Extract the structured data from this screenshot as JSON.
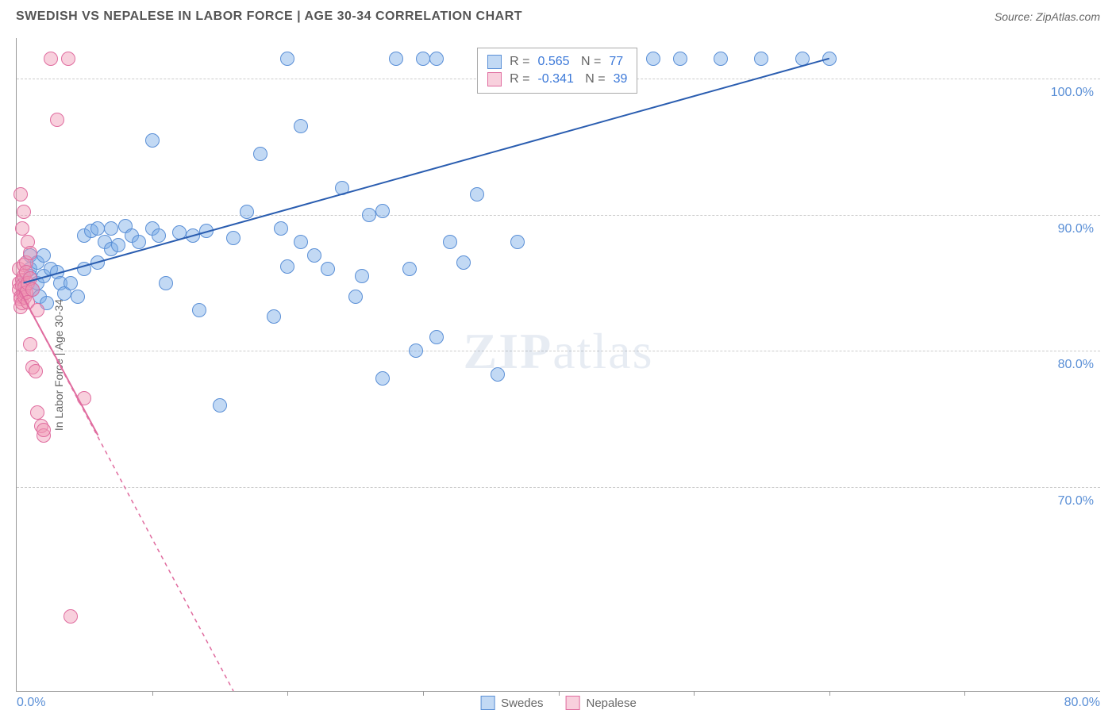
{
  "header": {
    "title": "SWEDISH VS NEPALESE IN LABOR FORCE | AGE 30-34 CORRELATION CHART",
    "source": "Source: ZipAtlas.com"
  },
  "chart": {
    "type": "scatter",
    "y_axis_label": "In Labor Force | Age 30-34",
    "xlim": [
      0,
      80
    ],
    "ylim": [
      55,
      103
    ],
    "x_origin_label": "0.0%",
    "x_end_label": "80.0%",
    "y_ticks": [
      {
        "value": 70,
        "label": "70.0%"
      },
      {
        "value": 80,
        "label": "80.0%"
      },
      {
        "value": 90,
        "label": "90.0%"
      },
      {
        "value": 100,
        "label": "100.0%"
      }
    ],
    "x_tick_marks": [
      10,
      20,
      30,
      40,
      50,
      60,
      70
    ],
    "background_color": "#ffffff",
    "grid_color": "#cccccc",
    "watermark": {
      "zip": "ZIP",
      "atlas": "atlas"
    },
    "series": [
      {
        "name": "Swedes",
        "color_fill": "rgba(120,170,230,0.45)",
        "color_stroke": "#5a8fd6",
        "marker_size": 18,
        "trend": {
          "x1": 0.5,
          "y1": 85,
          "x2": 60,
          "y2": 101.5,
          "color": "#2a5db0",
          "width": 2,
          "dash": "none"
        },
        "R": "0.565",
        "N": "77",
        "points": [
          [
            0.5,
            85
          ],
          [
            1,
            86
          ],
          [
            1,
            87
          ],
          [
            1,
            85.5
          ],
          [
            1.2,
            84.5
          ],
          [
            1.5,
            86.5
          ],
          [
            1.5,
            85
          ],
          [
            1.7,
            84
          ],
          [
            2,
            87
          ],
          [
            2,
            85.5
          ],
          [
            2.2,
            83.5
          ],
          [
            2.5,
            86
          ],
          [
            3,
            85.8
          ],
          [
            3.2,
            85
          ],
          [
            3.5,
            84.2
          ],
          [
            4,
            85
          ],
          [
            4.5,
            84
          ],
          [
            5,
            88.5
          ],
          [
            5,
            86
          ],
          [
            5.5,
            88.8
          ],
          [
            6,
            89
          ],
          [
            6,
            86.5
          ],
          [
            6.5,
            88
          ],
          [
            7,
            89
          ],
          [
            7,
            87.5
          ],
          [
            7.5,
            87.8
          ],
          [
            8,
            89.2
          ],
          [
            8.5,
            88.5
          ],
          [
            9,
            88
          ],
          [
            10,
            89
          ],
          [
            10,
            95.5
          ],
          [
            10.5,
            88.5
          ],
          [
            11,
            85
          ],
          [
            12,
            88.7
          ],
          [
            13,
            88.5
          ],
          [
            13.5,
            83
          ],
          [
            14,
            88.8
          ],
          [
            15,
            76
          ],
          [
            16,
            88.3
          ],
          [
            17,
            90.2
          ],
          [
            18,
            94.5
          ],
          [
            19,
            82.5
          ],
          [
            19.5,
            89
          ],
          [
            20,
            86.2
          ],
          [
            20,
            101.5
          ],
          [
            21,
            88
          ],
          [
            21,
            96.5
          ],
          [
            22,
            87
          ],
          [
            23,
            86
          ],
          [
            24,
            92
          ],
          [
            25,
            84
          ],
          [
            25.5,
            85.5
          ],
          [
            26,
            90
          ],
          [
            27,
            90.3
          ],
          [
            27,
            78
          ],
          [
            28,
            101.5
          ],
          [
            29,
            86
          ],
          [
            29.5,
            80
          ],
          [
            31,
            81
          ],
          [
            30,
            101.5
          ],
          [
            31,
            101.5
          ],
          [
            32,
            88
          ],
          [
            33,
            86.5
          ],
          [
            34,
            91.5
          ],
          [
            35,
            101.5
          ],
          [
            35.5,
            78.3
          ],
          [
            37,
            88
          ],
          [
            40,
            101.5
          ],
          [
            41,
            101.5
          ],
          [
            42,
            101.5
          ],
          [
            44,
            101.5
          ],
          [
            47,
            101.5
          ],
          [
            49,
            101.5
          ],
          [
            52,
            101.5
          ],
          [
            55,
            101.5
          ],
          [
            58,
            101.5
          ],
          [
            60,
            101.5
          ]
        ]
      },
      {
        "name": "Nepalese",
        "color_fill": "rgba(240,150,180,0.45)",
        "color_stroke": "#e06c9f",
        "marker_size": 18,
        "trend": {
          "x1": 0.2,
          "y1": 84.5,
          "x2": 16,
          "y2": 55,
          "color": "#e06c9f",
          "width": 1.5,
          "dash": "5,5"
        },
        "trend_solid": {
          "x1": 0.2,
          "y1": 84.5,
          "x2": 6,
          "y2": 73.8,
          "color": "#e06c9f",
          "width": 2,
          "dash": "none"
        },
        "R": "-0.341",
        "N": "39",
        "points": [
          [
            0.2,
            86
          ],
          [
            0.2,
            85
          ],
          [
            0.2,
            84.5
          ],
          [
            0.3,
            84
          ],
          [
            0.3,
            83.8
          ],
          [
            0.3,
            83.2
          ],
          [
            0.3,
            91.5
          ],
          [
            0.4,
            85.2
          ],
          [
            0.4,
            84.8
          ],
          [
            0.4,
            83.5
          ],
          [
            0.4,
            89
          ],
          [
            0.5,
            86.3
          ],
          [
            0.5,
            85.5
          ],
          [
            0.5,
            84.2
          ],
          [
            0.5,
            90.2
          ],
          [
            0.6,
            84.7
          ],
          [
            0.6,
            83.9
          ],
          [
            0.7,
            86.5
          ],
          [
            0.7,
            85.8
          ],
          [
            0.7,
            84.3
          ],
          [
            0.8,
            85
          ],
          [
            0.8,
            83.6
          ],
          [
            0.8,
            88
          ],
          [
            1,
            87.2
          ],
          [
            1,
            85.3
          ],
          [
            1,
            80.5
          ],
          [
            1.2,
            78.8
          ],
          [
            1.2,
            84.5
          ],
          [
            1.4,
            78.5
          ],
          [
            1.5,
            83
          ],
          [
            1.5,
            75.5
          ],
          [
            1.8,
            74.5
          ],
          [
            2,
            73.8
          ],
          [
            2,
            74.2
          ],
          [
            2.5,
            101.5
          ],
          [
            3,
            97
          ],
          [
            3.8,
            101.5
          ],
          [
            5,
            76.5
          ],
          [
            4,
            60.5
          ]
        ]
      }
    ],
    "legend": [
      {
        "label": "Swedes",
        "swatch": "blue"
      },
      {
        "label": "Nepalese",
        "swatch": "pink"
      }
    ]
  }
}
